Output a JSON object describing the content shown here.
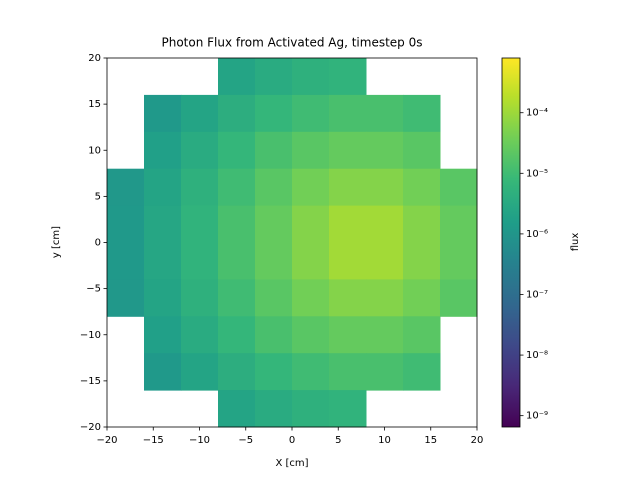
{
  "chart_data": {
    "type": "heatmap",
    "title": "Photon Flux from Activated Ag, timestep 0s",
    "x_label": "X [cm]",
    "y_label": "y [cm]",
    "colorbar_label": "flux",
    "colormap": "viridis",
    "log_scale": true,
    "x": [
      -18,
      -14,
      -10,
      -6,
      -2,
      2,
      6,
      10,
      14,
      18
    ],
    "y": [
      18,
      14,
      10,
      6,
      2,
      -2,
      -6,
      -10,
      -14,
      -18
    ],
    "values": [
      [
        null,
        null,
        null,
        2.3e-06,
        3.5e-06,
        4.9e-06,
        5.8e-06,
        null,
        null,
        null
      ],
      [
        null,
        1.2e-06,
        2.3e-06,
        4.1e-06,
        6.9e-06,
        1e-05,
        1.3e-05,
        1.3e-05,
        1e-05,
        null
      ],
      [
        null,
        1.8e-06,
        3.5e-06,
        6.9e-06,
        1.3e-05,
        2e-05,
        2.7e-05,
        2.7e-05,
        2e-05,
        null
      ],
      [
        1.1e-06,
        2.3e-06,
        4.9e-06,
        1e-05,
        2e-05,
        3.8e-05,
        5.8e-05,
        5.8e-05,
        3.8e-05,
        2e-05
      ],
      [
        1.2e-06,
        2.6e-06,
        5.8e-06,
        1.3e-05,
        2.7e-05,
        5.8e-05,
        0.00011,
        0.00011,
        5.8e-05,
        2.7e-05
      ],
      [
        1.2e-06,
        2.6e-06,
        5.8e-06,
        1.3e-05,
        2.7e-05,
        5.8e-05,
        0.00011,
        0.00011,
        5.8e-05,
        2.7e-05
      ],
      [
        1.1e-06,
        2.3e-06,
        4.9e-06,
        1e-05,
        2e-05,
        3.8e-05,
        5.8e-05,
        5.8e-05,
        3.8e-05,
        2e-05
      ],
      [
        null,
        1.8e-06,
        3.5e-06,
        6.9e-06,
        1.3e-05,
        2e-05,
        2.7e-05,
        2.7e-05,
        2e-05,
        null
      ],
      [
        null,
        1.2e-06,
        2.3e-06,
        4.1e-06,
        6.9e-06,
        1e-05,
        1.3e-05,
        1.3e-05,
        1e-05,
        null
      ],
      [
        null,
        null,
        null,
        2.3e-06,
        3.5e-06,
        4.9e-06,
        5.8e-06,
        null,
        null,
        null
      ]
    ],
    "xlim": [
      -20,
      20
    ],
    "ylim": [
      -20,
      20
    ],
    "xticks": [
      {
        "value": -20,
        "label": "−20"
      },
      {
        "value": -15,
        "label": "−15"
      },
      {
        "value": -10,
        "label": "−10"
      },
      {
        "value": -5,
        "label": "−5"
      },
      0,
      5,
      10,
      15,
      20
    ],
    "yticks": [
      {
        "value": -20,
        "label": "−20"
      },
      {
        "value": -15,
        "label": "−15"
      },
      {
        "value": -10,
        "label": "−10"
      },
      {
        "value": -5,
        "label": "−5"
      },
      0,
      5,
      10,
      15,
      20
    ],
    "zlim": [
      6.5e-10,
      0.0008
    ],
    "zticks": [
      {
        "value": 1e-09,
        "label": "10⁻⁹"
      },
      {
        "value": 1e-08,
        "label": "10⁻⁸"
      },
      {
        "value": 1e-07,
        "label": "10⁻⁷"
      },
      {
        "value": 1e-06,
        "label": "10⁻⁶"
      },
      {
        "value": 1e-05,
        "label": "10⁻⁵"
      },
      {
        "value": 0.0001,
        "label": "10⁻⁴"
      }
    ]
  }
}
